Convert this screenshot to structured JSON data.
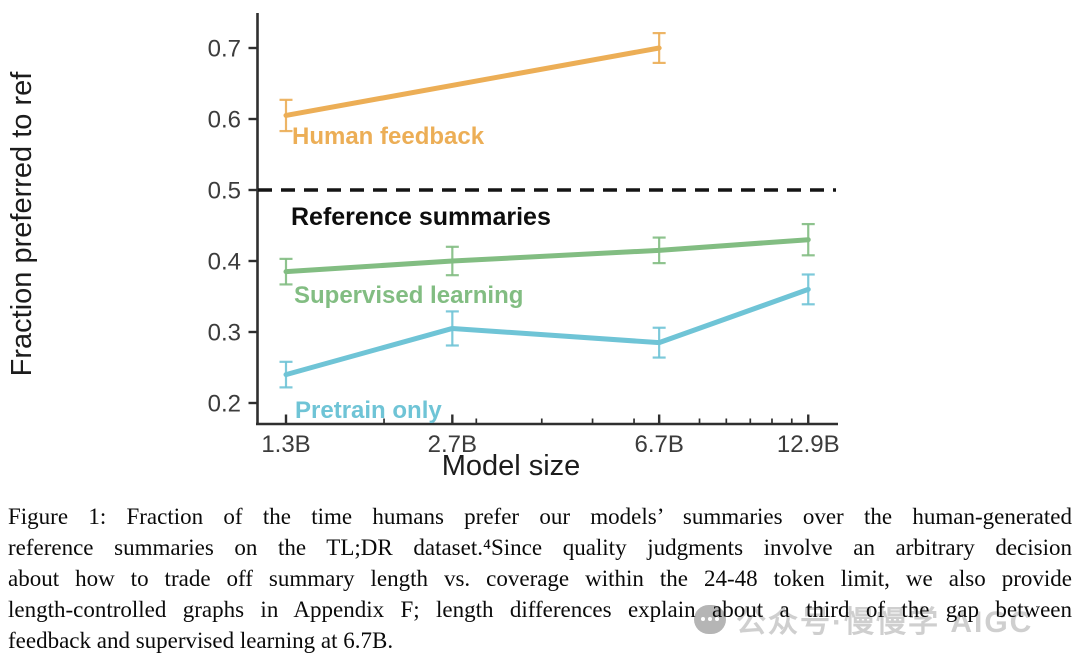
{
  "figure": {
    "caption_lines": [
      "Figure 1:  Fraction of the time humans prefer our models’ summaries over the human-generated",
      "reference summaries on the TL;DR dataset.⁴Since quality judgments involve an arbitrary decision",
      "about how to trade off summary length vs. coverage within the 24-48 token limit, we also provide",
      "length-controlled graphs in Appendix F; length differences explain about a third of the gap between",
      "feedback and supervised learning at 6.7B."
    ]
  },
  "watermark": {
    "icon": "chat-bubble-icon",
    "text": "公众号·慢慢学 AIGC",
    "color": "#c7c7c7"
  },
  "chart_data": {
    "type": "line",
    "title": "",
    "xlabel": "Model size",
    "ylabel": "Fraction preferred to ref",
    "x_scale": "log",
    "grid": false,
    "legend": "inline-labels",
    "xlim_b_params": [
      1.05,
      14.5
    ],
    "ylim": [
      0.17,
      0.75
    ],
    "x_ticks": [
      {
        "value": 1.3,
        "label": "1.3B"
      },
      {
        "value": 2.7,
        "label": "2.7B"
      },
      {
        "value": 6.7,
        "label": "6.7B"
      },
      {
        "value": 12.9,
        "label": "12.9B"
      }
    ],
    "x_minor_ticks": [
      2,
      3,
      4,
      5,
      6,
      8,
      9,
      10,
      11,
      12
    ],
    "y_ticks": [
      {
        "value": 0.2,
        "label": "0.2"
      },
      {
        "value": 0.3,
        "label": "0.3"
      },
      {
        "value": 0.4,
        "label": "0.4"
      },
      {
        "value": 0.5,
        "label": "0.5"
      },
      {
        "value": 0.6,
        "label": "0.6"
      },
      {
        "value": 0.7,
        "label": "0.7"
      }
    ],
    "reference_line": {
      "value": 0.5,
      "style": "dashed",
      "color": "#141414",
      "label": "Reference summaries"
    },
    "series": [
      {
        "name": "Human feedback",
        "color": "#ecae56",
        "x": [
          1.3,
          6.7
        ],
        "y": [
          0.605,
          0.7
        ],
        "yerr": [
          0.022,
          0.021
        ]
      },
      {
        "name": "Supervised learning",
        "color": "#82bd82",
        "x": [
          1.3,
          2.7,
          6.7,
          12.9
        ],
        "y": [
          0.385,
          0.4,
          0.415,
          0.43
        ],
        "yerr": [
          0.018,
          0.02,
          0.018,
          0.022
        ]
      },
      {
        "name": "Pretrain only",
        "color": "#6fc4d6",
        "x": [
          1.3,
          2.7,
          6.7,
          12.9
        ],
        "y": [
          0.24,
          0.305,
          0.285,
          0.36
        ],
        "yerr": [
          0.018,
          0.024,
          0.021,
          0.021
        ]
      }
    ]
  }
}
